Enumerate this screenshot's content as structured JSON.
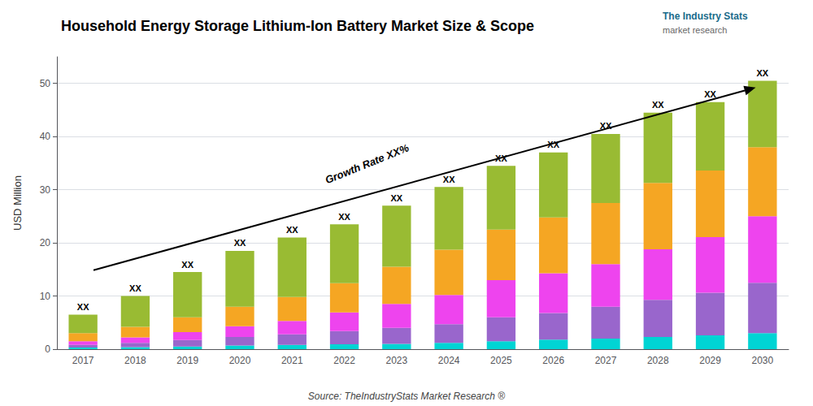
{
  "chart_data": {
    "type": "bar",
    "stacked": true,
    "title": "Household Energy Storage Lithium-Ion Battery Market Size & Scope",
    "ylabel": "USD Million",
    "source": "Source: TheIndustryStats Market Research ®",
    "categories": [
      "2017",
      "2018",
      "2019",
      "2020",
      "2021",
      "2022",
      "2023",
      "2024",
      "2025",
      "2026",
      "2027",
      "2028",
      "2029",
      "2030"
    ],
    "series": [
      {
        "color": "#00D4D4",
        "values": [
          0.3,
          0.4,
          0.5,
          0.7,
          0.8,
          0.9,
          1.0,
          1.2,
          1.5,
          1.8,
          2.0,
          2.3,
          2.6,
          3.0
        ]
      },
      {
        "color": "#9966CC",
        "values": [
          0.5,
          0.8,
          1.2,
          1.6,
          2.0,
          2.5,
          3.0,
          3.5,
          4.5,
          5.0,
          6.0,
          7.0,
          8.0,
          9.5
        ]
      },
      {
        "color": "#EE44EE",
        "values": [
          0.7,
          1.0,
          1.5,
          2.0,
          2.5,
          3.5,
          4.5,
          5.5,
          7.0,
          7.5,
          8.0,
          9.5,
          10.5,
          12.5
        ]
      },
      {
        "color": "#F5A623",
        "values": [
          1.5,
          2.0,
          2.8,
          3.7,
          4.5,
          5.5,
          7.0,
          8.5,
          9.5,
          10.5,
          11.5,
          12.5,
          12.5,
          13.0
        ]
      },
      {
        "color": "#99BB33",
        "values": [
          3.5,
          5.8,
          8.5,
          10.5,
          11.2,
          11.1,
          11.5,
          11.8,
          12.0,
          12.2,
          13.0,
          13.2,
          12.9,
          12.5
        ]
      }
    ],
    "stack_labels": [
      "XX",
      "XX",
      "XX",
      "XX",
      "XX",
      "XX",
      "XX",
      "XX",
      "XX",
      "XX",
      "XX",
      "XX",
      "XX",
      "XX"
    ],
    "annotations": [
      {
        "text": "Growth Rate XX%"
      },
      {
        "text": "The Industry Stats",
        "color": "#1a6b8a"
      },
      {
        "text": "market research",
        "color": "#666666"
      }
    ],
    "ylim": [
      0,
      55
    ],
    "yticks": [
      0,
      10,
      20,
      30,
      40,
      50
    ],
    "grid": true
  }
}
